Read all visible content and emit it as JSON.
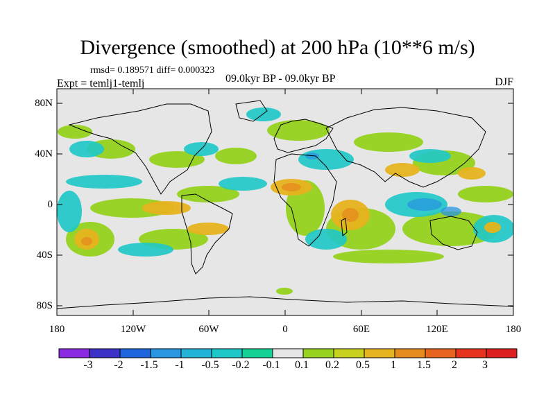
{
  "figure": {
    "title": "Divergence (smoothed) at 200 hPa (10**6 m/s)",
    "stats": "rmsd= 0.189571 diff= 0.000323",
    "experiment": "Expt = temlj1-temlj",
    "period": "09.0kyr BP - 09.0kyr BP",
    "season": "DJF"
  },
  "map": {
    "y_axis_labels": [
      "80N",
      "40N",
      "0",
      "40S",
      "80S"
    ],
    "x_axis_labels": [
      "180",
      "120W",
      "60W",
      "0",
      "60E",
      "120E",
      "180"
    ],
    "background_color": "#e6e6e6"
  },
  "colorbar": {
    "labels": [
      "-3",
      "-2",
      "-1.5",
      "-1",
      "-0.5",
      "-0.2",
      "-0.1",
      "0.1",
      "0.2",
      "0.5",
      "1",
      "1.5",
      "2",
      "3"
    ],
    "colors": [
      "#8a2be2",
      "#3c32c8",
      "#1e64dc",
      "#2896e1",
      "#23b4d7",
      "#1ec8c8",
      "#14d296",
      "#e6e6e6",
      "#96d21e",
      "#c8d21e",
      "#e6b41e",
      "#e68c1e",
      "#e6641e",
      "#e6321e",
      "#dc1e1e"
    ]
  }
}
